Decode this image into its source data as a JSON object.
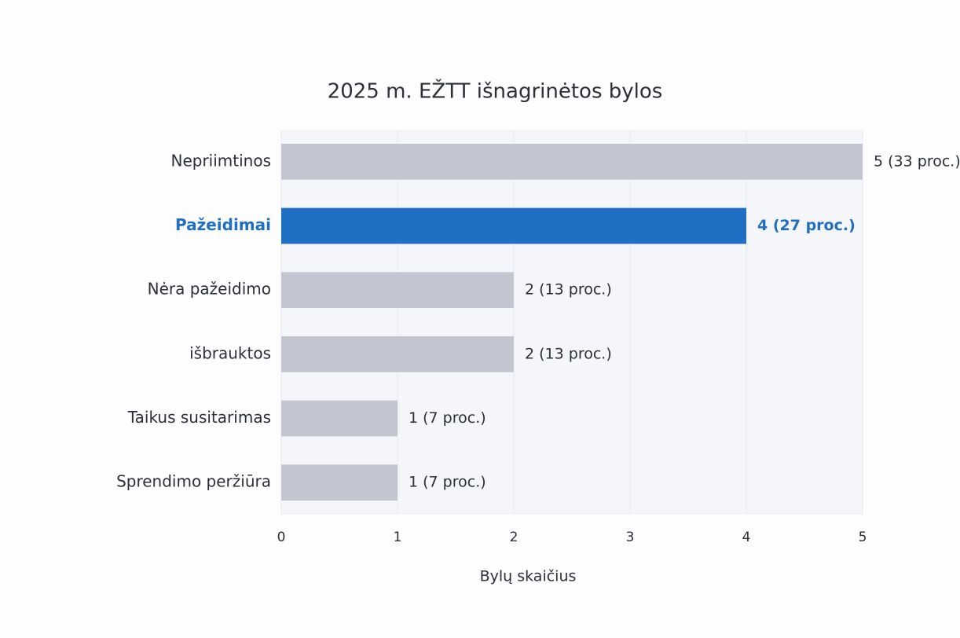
{
  "chart_data": {
    "type": "barh",
    "title": "2025 m. EŽTT išnagrinėtos bylos",
    "categories": [
      "Nepriimtinos",
      "Pažeidimai",
      "Nėra pažeidimo",
      "išbrauktos",
      "Taikus susitarimas",
      "Sprendimo peržiūra"
    ],
    "values": [
      5,
      4,
      2,
      2,
      1,
      1
    ],
    "value_labels": [
      "5 (33 proc.)",
      "4 (27 proc.)",
      "2 (13 proc.)",
      "2 (13 proc.)",
      "1 (7 proc.)",
      "1 (7 proc.)"
    ],
    "color": "#c3c6d1",
    "colors": [
      "#c3c6d1",
      "#1f6fc5",
      "#c3c6d1",
      "#c3c6d1",
      "#c3c6d1",
      "#c3c6d1"
    ],
    "xlabel": "Bylų skaičius",
    "xlim": [
      0,
      5
    ],
    "xticks": [
      0,
      1,
      2,
      3,
      4,
      5
    ],
    "grid": true
  }
}
